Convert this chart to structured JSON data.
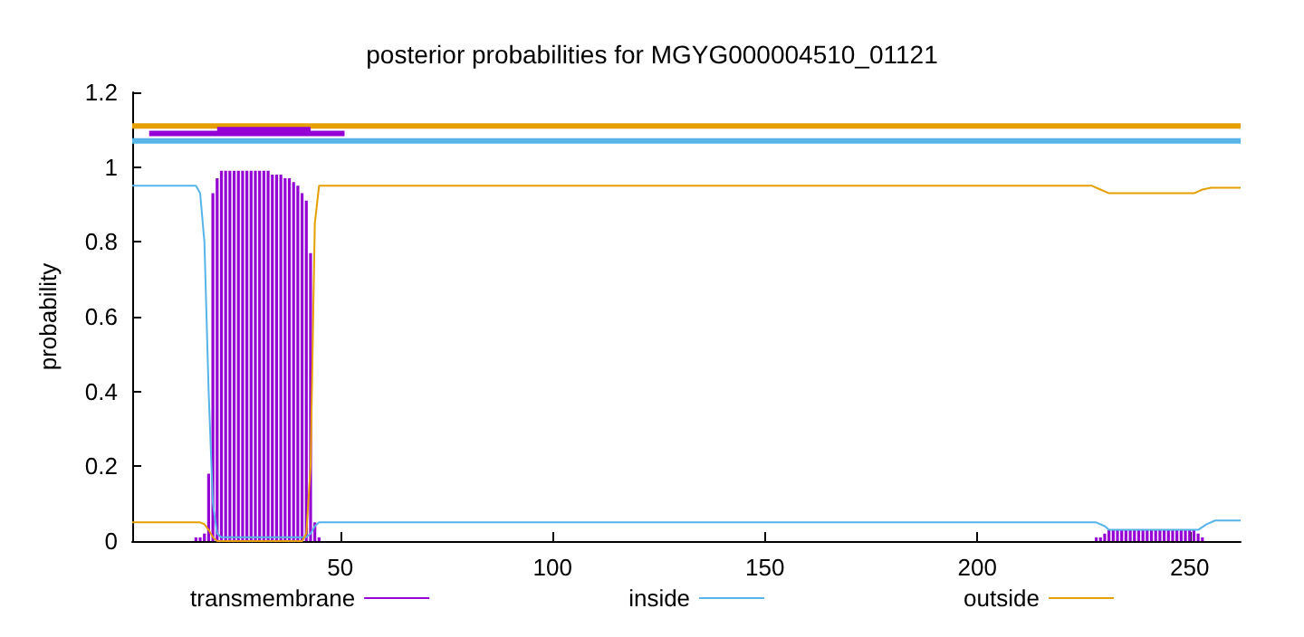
{
  "chart_data": {
    "type": "line",
    "title": "posterior probabilities for MGYG000004510_01121",
    "ylabel": "probability",
    "xlim": [
      1,
      262
    ],
    "xticks": [
      50,
      100,
      150,
      200,
      250
    ],
    "ylim": [
      0,
      1.2
    ],
    "yticks": [
      0,
      0.2,
      0.4,
      0.6,
      0.8,
      1,
      1.2
    ],
    "grid": false,
    "legend": "bottom",
    "marker": "none",
    "line_style": "solid",
    "series": [
      {
        "name": "transmembrane",
        "type": "bar",
        "color": "#9400d3",
        "x": [
          16,
          17,
          18,
          19,
          20,
          21,
          22,
          23,
          24,
          25,
          26,
          27,
          28,
          29,
          30,
          31,
          32,
          33,
          34,
          35,
          36,
          37,
          38,
          39,
          40,
          41,
          42,
          43,
          44,
          45,
          228,
          229,
          230,
          231,
          232,
          233,
          234,
          235,
          236,
          237,
          238,
          239,
          240,
          241,
          242,
          243,
          244,
          245,
          246,
          247,
          248,
          249,
          250,
          251,
          252,
          253
        ],
        "values": [
          0.01,
          0.01,
          0.02,
          0.18,
          0.93,
          0.97,
          0.99,
          0.99,
          0.99,
          0.99,
          0.99,
          0.99,
          0.99,
          0.99,
          0.99,
          0.99,
          0.99,
          0.99,
          0.98,
          0.98,
          0.98,
          0.97,
          0.97,
          0.96,
          0.95,
          0.93,
          0.91,
          0.77,
          0.05,
          0.01,
          0.01,
          0.01,
          0.02,
          0.03,
          0.03,
          0.03,
          0.03,
          0.03,
          0.03,
          0.03,
          0.03,
          0.03,
          0.03,
          0.03,
          0.03,
          0.03,
          0.03,
          0.03,
          0.03,
          0.03,
          0.03,
          0.03,
          0.03,
          0.03,
          0.02,
          0.01
        ]
      },
      {
        "name": "inside",
        "color": "#56b4e9",
        "x": [
          1,
          16,
          17,
          18,
          19,
          20,
          21,
          22,
          42,
          43,
          44,
          45,
          228,
          230,
          231,
          252,
          254,
          256,
          262
        ],
        "values": [
          0.95,
          0.95,
          0.93,
          0.8,
          0.4,
          0.1,
          0.02,
          0.01,
          0.01,
          0.02,
          0.04,
          0.05,
          0.05,
          0.04,
          0.03,
          0.03,
          0.045,
          0.055,
          0.055
        ]
      },
      {
        "name": "outside",
        "color": "#e69f00",
        "x": [
          1,
          17,
          18,
          19,
          20,
          21,
          22,
          41,
          42,
          43,
          44,
          45,
          227,
          229,
          231,
          251,
          253,
          255,
          262
        ],
        "values": [
          0.05,
          0.05,
          0.045,
          0.03,
          0.01,
          0.0,
          0.0,
          0.0,
          0.02,
          0.2,
          0.85,
          0.95,
          0.95,
          0.94,
          0.93,
          0.93,
          0.94,
          0.945,
          0.945
        ]
      },
      {
        "color": "#e69f00",
        "x": [
          1,
          262
        ],
        "values": [
          1.11,
          1.11
        ]
      },
      {
        "color": "#56b4e9",
        "x": [
          1,
          262
        ],
        "values": [
          1.07,
          1.07
        ]
      },
      {
        "color": "#9400d3",
        "x": [
          5,
          51
        ],
        "values": [
          1.09,
          1.09
        ]
      },
      {
        "color": "#9400d3",
        "x": [
          21,
          43
        ],
        "values": [
          1.1,
          1.1
        ]
      }
    ]
  }
}
